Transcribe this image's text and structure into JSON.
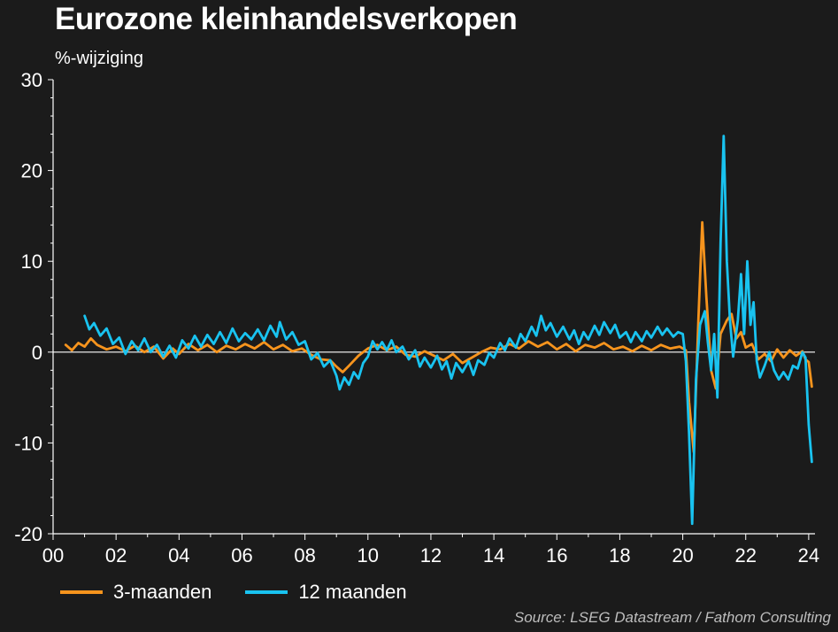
{
  "title": "Eurozone kleinhandelsverkopen",
  "subtitle": "%-wijziging",
  "source": "Source: LSEG Datastream / Fathom Consulting",
  "colors": {
    "background": "#1b1b1b",
    "series_3m": "#f7941d",
    "series_12m": "#19c3f0",
    "axis": "#ffffff",
    "zero_line": "#ffffff"
  },
  "chart_data": {
    "type": "line",
    "title": "Eurozone kleinhandelsverkopen",
    "ylabel": "%-wijziging",
    "xlabel": "",
    "xlim": [
      2000.0,
      2024.2
    ],
    "ylim": [
      -20,
      30
    ],
    "x_ticks": [
      2000,
      2002,
      2004,
      2006,
      2008,
      2010,
      2012,
      2014,
      2016,
      2018,
      2020,
      2022,
      2024
    ],
    "x_tick_labels": [
      "00",
      "02",
      "04",
      "06",
      "08",
      "10",
      "12",
      "14",
      "16",
      "18",
      "20",
      "22",
      "24"
    ],
    "y_ticks": [
      -20,
      -10,
      0,
      10,
      20,
      30
    ],
    "y_tick_labels": [
      "-20",
      "-10",
      "0",
      "10",
      "20",
      "30"
    ],
    "grid": false,
    "legend_position": "bottom-left",
    "series": [
      {
        "name": "3-maanden",
        "color": "#f7941d",
        "points": [
          [
            2000.4,
            0.8
          ],
          [
            2000.6,
            0.2
          ],
          [
            2000.8,
            1.0
          ],
          [
            2001.0,
            0.6
          ],
          [
            2001.2,
            1.5
          ],
          [
            2001.4,
            0.8
          ],
          [
            2001.7,
            0.3
          ],
          [
            2002.0,
            0.6
          ],
          [
            2002.3,
            0.1
          ],
          [
            2002.6,
            0.7
          ],
          [
            2002.9,
            0.0
          ],
          [
            2003.2,
            0.6
          ],
          [
            2003.5,
            -0.7
          ],
          [
            2003.8,
            0.4
          ],
          [
            2004.0,
            -0.2
          ],
          [
            2004.3,
            0.9
          ],
          [
            2004.6,
            0.2
          ],
          [
            2004.9,
            0.8
          ],
          [
            2005.2,
            0.0
          ],
          [
            2005.5,
            0.7
          ],
          [
            2005.8,
            0.3
          ],
          [
            2006.1,
            0.9
          ],
          [
            2006.4,
            0.4
          ],
          [
            2006.7,
            1.1
          ],
          [
            2007.0,
            0.3
          ],
          [
            2007.3,
            0.8
          ],
          [
            2007.6,
            0.1
          ],
          [
            2007.9,
            0.4
          ],
          [
            2008.2,
            -0.3
          ],
          [
            2008.5,
            -0.8
          ],
          [
            2008.8,
            -0.9
          ],
          [
            2009.0,
            -1.6
          ],
          [
            2009.2,
            -2.2
          ],
          [
            2009.4,
            -1.5
          ],
          [
            2009.7,
            -0.4
          ],
          [
            2010.0,
            0.4
          ],
          [
            2010.3,
            0.8
          ],
          [
            2010.6,
            0.2
          ],
          [
            2010.9,
            0.6
          ],
          [
            2011.2,
            -0.3
          ],
          [
            2011.5,
            -0.5
          ],
          [
            2011.8,
            0.1
          ],
          [
            2012.1,
            -0.4
          ],
          [
            2012.4,
            -0.9
          ],
          [
            2012.7,
            -0.2
          ],
          [
            2013.0,
            -1.2
          ],
          [
            2013.3,
            -0.6
          ],
          [
            2013.6,
            0.0
          ],
          [
            2013.9,
            0.5
          ],
          [
            2014.2,
            0.3
          ],
          [
            2014.5,
            0.9
          ],
          [
            2014.8,
            0.4
          ],
          [
            2015.1,
            1.2
          ],
          [
            2015.4,
            0.6
          ],
          [
            2015.7,
            1.1
          ],
          [
            2016.0,
            0.3
          ],
          [
            2016.3,
            0.9
          ],
          [
            2016.6,
            0.1
          ],
          [
            2016.9,
            0.8
          ],
          [
            2017.2,
            0.5
          ],
          [
            2017.5,
            1.0
          ],
          [
            2017.8,
            0.3
          ],
          [
            2018.1,
            0.6
          ],
          [
            2018.4,
            0.1
          ],
          [
            2018.7,
            0.7
          ],
          [
            2019.0,
            0.2
          ],
          [
            2019.3,
            0.8
          ],
          [
            2019.6,
            0.4
          ],
          [
            2019.9,
            0.6
          ],
          [
            2020.1,
            0.2
          ],
          [
            2020.2,
            -5.5
          ],
          [
            2020.35,
            -11.0
          ],
          [
            2020.5,
            4.0
          ],
          [
            2020.62,
            14.3
          ],
          [
            2020.75,
            6.0
          ],
          [
            2020.9,
            -2.0
          ],
          [
            2021.05,
            -4.0
          ],
          [
            2021.2,
            2.0
          ],
          [
            2021.4,
            3.5
          ],
          [
            2021.55,
            4.2
          ],
          [
            2021.7,
            1.5
          ],
          [
            2021.85,
            2.2
          ],
          [
            2022.0,
            0.5
          ],
          [
            2022.2,
            0.9
          ],
          [
            2022.4,
            -0.8
          ],
          [
            2022.6,
            -0.2
          ],
          [
            2022.8,
            -1.0
          ],
          [
            2023.0,
            0.3
          ],
          [
            2023.2,
            -0.6
          ],
          [
            2023.4,
            0.2
          ],
          [
            2023.6,
            -0.4
          ],
          [
            2023.8,
            0.1
          ],
          [
            2023.9,
            -0.8
          ],
          [
            2024.0,
            -1.1
          ],
          [
            2024.1,
            -3.8
          ]
        ]
      },
      {
        "name": "12 maanden",
        "color": "#19c3f0",
        "points": [
          [
            2001.0,
            4.0
          ],
          [
            2001.15,
            2.5
          ],
          [
            2001.3,
            3.2
          ],
          [
            2001.5,
            1.8
          ],
          [
            2001.7,
            2.6
          ],
          [
            2001.9,
            0.9
          ],
          [
            2002.1,
            1.6
          ],
          [
            2002.3,
            -0.2
          ],
          [
            2002.5,
            1.2
          ],
          [
            2002.7,
            0.2
          ],
          [
            2002.9,
            1.5
          ],
          [
            2003.1,
            0.0
          ],
          [
            2003.3,
            0.8
          ],
          [
            2003.5,
            -0.5
          ],
          [
            2003.7,
            0.7
          ],
          [
            2003.9,
            -0.6
          ],
          [
            2004.1,
            1.3
          ],
          [
            2004.3,
            0.4
          ],
          [
            2004.5,
            1.8
          ],
          [
            2004.7,
            0.6
          ],
          [
            2004.9,
            1.9
          ],
          [
            2005.1,
            0.9
          ],
          [
            2005.3,
            2.2
          ],
          [
            2005.5,
            1.0
          ],
          [
            2005.7,
            2.6
          ],
          [
            2005.9,
            1.2
          ],
          [
            2006.1,
            2.1
          ],
          [
            2006.3,
            1.4
          ],
          [
            2006.5,
            2.5
          ],
          [
            2006.7,
            1.3
          ],
          [
            2006.9,
            2.9
          ],
          [
            2007.1,
            1.7
          ],
          [
            2007.2,
            3.3
          ],
          [
            2007.4,
            1.4
          ],
          [
            2007.6,
            2.2
          ],
          [
            2007.8,
            0.8
          ],
          [
            2008.0,
            1.2
          ],
          [
            2008.2,
            -0.8
          ],
          [
            2008.4,
            -0.1
          ],
          [
            2008.6,
            -1.6
          ],
          [
            2008.8,
            -0.9
          ],
          [
            2009.0,
            -2.6
          ],
          [
            2009.1,
            -4.1
          ],
          [
            2009.25,
            -2.8
          ],
          [
            2009.4,
            -3.6
          ],
          [
            2009.55,
            -2.2
          ],
          [
            2009.7,
            -2.9
          ],
          [
            2009.85,
            -1.2
          ],
          [
            2010.0,
            -0.5
          ],
          [
            2010.15,
            1.2
          ],
          [
            2010.3,
            0.3
          ],
          [
            2010.45,
            1.1
          ],
          [
            2010.6,
            0.2
          ],
          [
            2010.75,
            1.3
          ],
          [
            2010.9,
            0.0
          ],
          [
            2011.1,
            0.6
          ],
          [
            2011.3,
            -0.8
          ],
          [
            2011.5,
            0.2
          ],
          [
            2011.65,
            -1.6
          ],
          [
            2011.8,
            -0.6
          ],
          [
            2012.0,
            -1.7
          ],
          [
            2012.2,
            -0.4
          ],
          [
            2012.35,
            -1.9
          ],
          [
            2012.5,
            -1.0
          ],
          [
            2012.65,
            -2.9
          ],
          [
            2012.8,
            -1.2
          ],
          [
            2013.0,
            -2.2
          ],
          [
            2013.2,
            -1.0
          ],
          [
            2013.35,
            -2.5
          ],
          [
            2013.5,
            -0.9
          ],
          [
            2013.7,
            -1.4
          ],
          [
            2013.85,
            -0.1
          ],
          [
            2014.0,
            -0.6
          ],
          [
            2014.2,
            1.0
          ],
          [
            2014.35,
            0.2
          ],
          [
            2014.5,
            1.5
          ],
          [
            2014.7,
            0.5
          ],
          [
            2014.85,
            2.0
          ],
          [
            2015.0,
            1.2
          ],
          [
            2015.2,
            2.8
          ],
          [
            2015.35,
            1.8
          ],
          [
            2015.5,
            4.0
          ],
          [
            2015.65,
            2.4
          ],
          [
            2015.8,
            3.2
          ],
          [
            2016.0,
            1.7
          ],
          [
            2016.2,
            2.8
          ],
          [
            2016.4,
            1.4
          ],
          [
            2016.55,
            2.4
          ],
          [
            2016.7,
            0.9
          ],
          [
            2016.85,
            2.2
          ],
          [
            2017.0,
            1.4
          ],
          [
            2017.2,
            2.9
          ],
          [
            2017.35,
            1.9
          ],
          [
            2017.5,
            3.3
          ],
          [
            2017.7,
            2.1
          ],
          [
            2017.85,
            3.0
          ],
          [
            2018.0,
            1.6
          ],
          [
            2018.2,
            2.2
          ],
          [
            2018.35,
            1.1
          ],
          [
            2018.5,
            2.2
          ],
          [
            2018.7,
            1.2
          ],
          [
            2018.85,
            2.3
          ],
          [
            2019.0,
            1.6
          ],
          [
            2019.2,
            2.8
          ],
          [
            2019.35,
            1.9
          ],
          [
            2019.5,
            2.6
          ],
          [
            2019.7,
            1.7
          ],
          [
            2019.85,
            2.2
          ],
          [
            2020.0,
            2.0
          ],
          [
            2020.1,
            -1.0
          ],
          [
            2020.2,
            -9.0
          ],
          [
            2020.3,
            -18.9
          ],
          [
            2020.42,
            -3.0
          ],
          [
            2020.55,
            3.0
          ],
          [
            2020.7,
            4.5
          ],
          [
            2020.8,
            1.0
          ],
          [
            2020.9,
            -2.0
          ],
          [
            2021.0,
            2.0
          ],
          [
            2021.1,
            -5.0
          ],
          [
            2021.2,
            12.0
          ],
          [
            2021.3,
            23.8
          ],
          [
            2021.4,
            10.0
          ],
          [
            2021.5,
            3.5
          ],
          [
            2021.6,
            -0.5
          ],
          [
            2021.75,
            3.5
          ],
          [
            2021.85,
            8.6
          ],
          [
            2021.95,
            2.0
          ],
          [
            2022.05,
            10.0
          ],
          [
            2022.15,
            3.0
          ],
          [
            2022.25,
            5.5
          ],
          [
            2022.35,
            -1.0
          ],
          [
            2022.45,
            -2.8
          ],
          [
            2022.6,
            -1.5
          ],
          [
            2022.75,
            0.0
          ],
          [
            2022.9,
            -2.0
          ],
          [
            2023.05,
            -3.0
          ],
          [
            2023.2,
            -2.2
          ],
          [
            2023.35,
            -3.0
          ],
          [
            2023.5,
            -1.5
          ],
          [
            2023.65,
            -1.8
          ],
          [
            2023.8,
            0.0
          ],
          [
            2023.9,
            -0.6
          ],
          [
            2024.0,
            -8.0
          ],
          [
            2024.1,
            -12.1
          ]
        ]
      }
    ]
  }
}
